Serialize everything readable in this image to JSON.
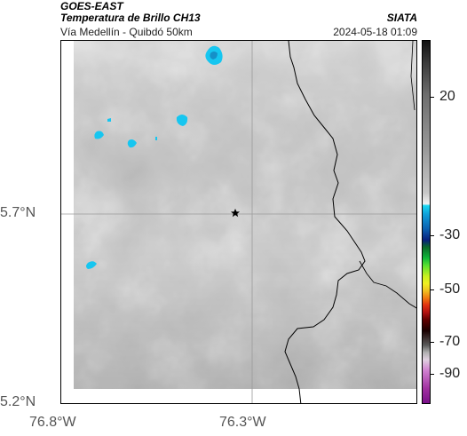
{
  "header": {
    "satellite": "GOES-EAST",
    "product": "Temperatura de Brillo CH13",
    "route": "Vía Medellín - Quibdó 50km",
    "organization": "SIATA",
    "datetime": "2024-05-18 01:09"
  },
  "axes": {
    "lat_ticks": [
      "5.7°N",
      "5.2°N"
    ],
    "lon_ticks": [
      "76.8°W",
      "76.3°W"
    ]
  },
  "colorbar": {
    "ticks": [
      "20",
      "-30",
      "-50",
      "-70",
      "-90"
    ]
  },
  "marker": {
    "icon": "star-icon"
  },
  "colors": {
    "cloud_gray": "#8a8a8a",
    "cold_cyan": "#16c6f0",
    "border": "#000000",
    "grid": "#9a9a9a"
  }
}
